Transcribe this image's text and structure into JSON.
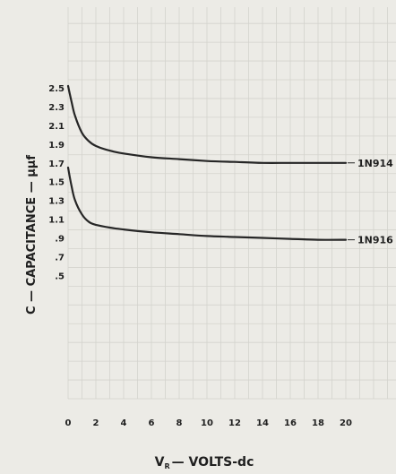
{
  "chart_data": {
    "type": "line",
    "xlabel_main": "V",
    "xlabel_sub": "R",
    "xlabel_rest": "— VOLTS-dc",
    "ylabel": "C — CAPACITANCE — µµf",
    "xlim": [
      0,
      20
    ],
    "ylim": [
      0.3,
      2.5
    ],
    "grid": true,
    "x_ticks": [
      0,
      2,
      4,
      6,
      8,
      10,
      12,
      14,
      16,
      18,
      20
    ],
    "y_ticks": [
      0.5,
      0.7,
      0.9,
      1.1,
      1.3,
      1.5,
      1.7,
      1.9,
      2.1,
      2.3,
      2.5
    ],
    "x_tick_labels": [
      "0",
      "2",
      "4",
      "6",
      "8",
      "10",
      "12",
      "14",
      "16",
      "18",
      "20"
    ],
    "y_tick_labels": [
      ".5",
      ".7",
      ".9",
      "1.1",
      "1.3",
      "1.5",
      "1.7",
      "1.9",
      "2.1",
      "2.3",
      "2.5"
    ],
    "series": [
      {
        "name": "1N914",
        "x": [
          0,
          0.25,
          0.5,
          1,
          1.5,
          2,
          3,
          4,
          6,
          8,
          10,
          12,
          14,
          16,
          18,
          20
        ],
        "y": [
          2.52,
          2.35,
          2.2,
          2.02,
          1.93,
          1.88,
          1.83,
          1.8,
          1.76,
          1.74,
          1.72,
          1.71,
          1.7,
          1.7,
          1.7,
          1.7
        ]
      },
      {
        "name": "1N916",
        "x": [
          0,
          0.25,
          0.5,
          1,
          1.5,
          2,
          3,
          4,
          6,
          8,
          10,
          12,
          14,
          16,
          18,
          20
        ],
        "y": [
          1.65,
          1.45,
          1.3,
          1.15,
          1.07,
          1.04,
          1.01,
          0.99,
          0.96,
          0.94,
          0.92,
          0.91,
          0.9,
          0.89,
          0.88,
          0.88
        ]
      }
    ]
  }
}
